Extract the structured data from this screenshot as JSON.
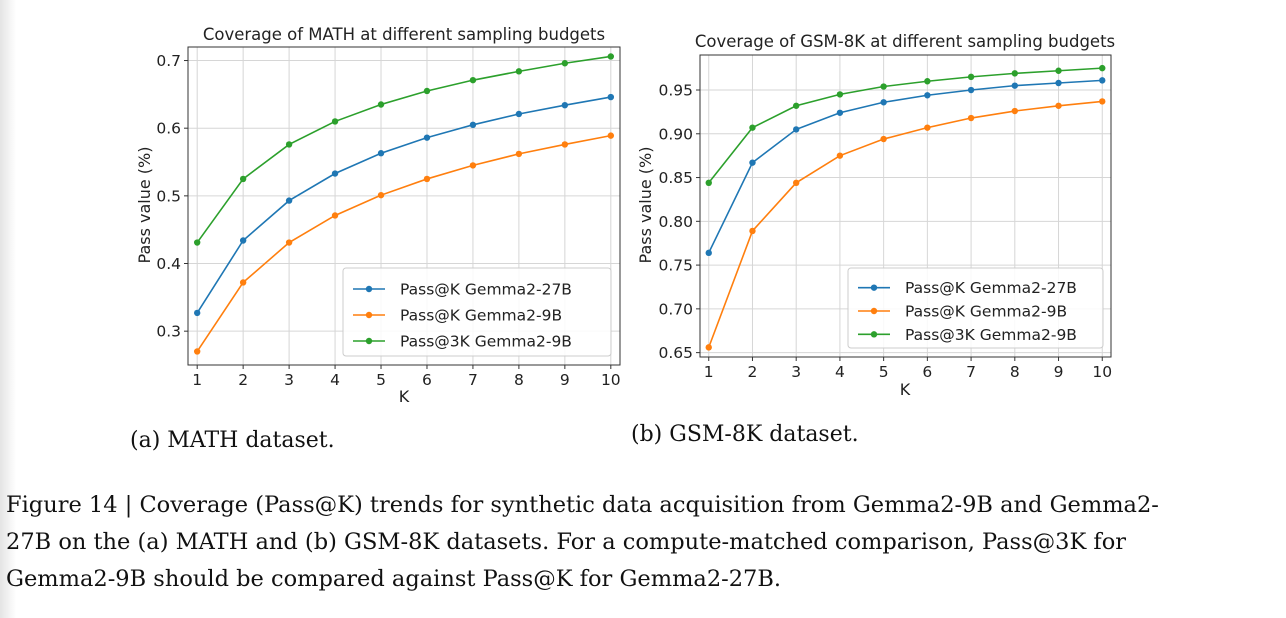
{
  "charts": [
    {
      "title": "Coverage of MATH at different sampling budgets",
      "xlabel": "K",
      "ylabel": "Pass value (%)",
      "subcaption": "(a) MATH dataset."
    },
    {
      "title": "Coverage of GSM-8K at different sampling budgets",
      "xlabel": "K",
      "ylabel": "Pass value (%)",
      "subcaption": "(b) GSM-8K dataset."
    }
  ],
  "chart_data": [
    {
      "type": "line",
      "title": "Coverage of MATH at different sampling budgets",
      "xlabel": "K",
      "ylabel": "Pass value (%)",
      "x": [
        1,
        2,
        3,
        4,
        5,
        6,
        7,
        8,
        9,
        10
      ],
      "xticks": [
        "1",
        "2",
        "3",
        "4",
        "5",
        "6",
        "7",
        "8",
        "9",
        "10"
      ],
      "yticks": [
        "0.3",
        "0.4",
        "0.5",
        "0.6",
        "0.7"
      ],
      "ytick_values": [
        0.3,
        0.4,
        0.5,
        0.6,
        0.7
      ],
      "xlim": [
        0.8,
        10.2
      ],
      "ylim": [
        0.25,
        0.72
      ],
      "grid": true,
      "legend_position": "lower-right",
      "series": [
        {
          "name": "Pass@K Gemma2-27B",
          "color": "#1f77b4",
          "values": [
            0.327,
            0.434,
            0.493,
            0.533,
            0.563,
            0.586,
            0.605,
            0.621,
            0.634,
            0.646
          ]
        },
        {
          "name": "Pass@K Gemma2-9B",
          "color": "#ff7f0e",
          "values": [
            0.27,
            0.372,
            0.431,
            0.471,
            0.501,
            0.525,
            0.545,
            0.562,
            0.576,
            0.589
          ]
        },
        {
          "name": "Pass@3K Gemma2-9B",
          "color": "#2ca02c",
          "values": [
            0.431,
            0.525,
            0.576,
            0.61,
            0.635,
            0.655,
            0.671,
            0.684,
            0.696,
            0.706
          ]
        }
      ]
    },
    {
      "type": "line",
      "title": "Coverage of GSM-8K at different sampling budgets",
      "xlabel": "K",
      "ylabel": "Pass value (%)",
      "x": [
        1,
        2,
        3,
        4,
        5,
        6,
        7,
        8,
        9,
        10
      ],
      "xticks": [
        "1",
        "2",
        "3",
        "4",
        "5",
        "6",
        "7",
        "8",
        "9",
        "10"
      ],
      "yticks": [
        "0.65",
        "0.70",
        "0.75",
        "0.80",
        "0.85",
        "0.90",
        "0.95"
      ],
      "ytick_values": [
        0.65,
        0.7,
        0.75,
        0.8,
        0.85,
        0.9,
        0.95
      ],
      "xlim": [
        0.8,
        10.2
      ],
      "ylim": [
        0.645,
        0.99
      ],
      "grid": true,
      "legend_position": "lower-right",
      "series": [
        {
          "name": "Pass@K Gemma2-27B",
          "color": "#1f77b4",
          "values": [
            0.764,
            0.867,
            0.905,
            0.924,
            0.936,
            0.944,
            0.95,
            0.955,
            0.958,
            0.961
          ]
        },
        {
          "name": "Pass@K Gemma2-9B",
          "color": "#ff7f0e",
          "values": [
            0.656,
            0.789,
            0.844,
            0.875,
            0.894,
            0.907,
            0.918,
            0.926,
            0.932,
            0.937
          ]
        },
        {
          "name": "Pass@3K Gemma2-9B",
          "color": "#2ca02c",
          "values": [
            0.844,
            0.907,
            0.932,
            0.945,
            0.954,
            0.96,
            0.965,
            0.969,
            0.972,
            0.975
          ]
        }
      ]
    }
  ],
  "figure_caption": {
    "lines": [
      "Figure 14 | Coverage (Pass@K) trends for synthetic data acquisition from Gemma2-9B and Gemma2-",
      "27B on the (a) MATH and (b) GSM-8K datasets. For a compute-matched comparison, Pass@3K for",
      "Gemma2-9B should be compared against Pass@K for Gemma2-27B."
    ]
  }
}
